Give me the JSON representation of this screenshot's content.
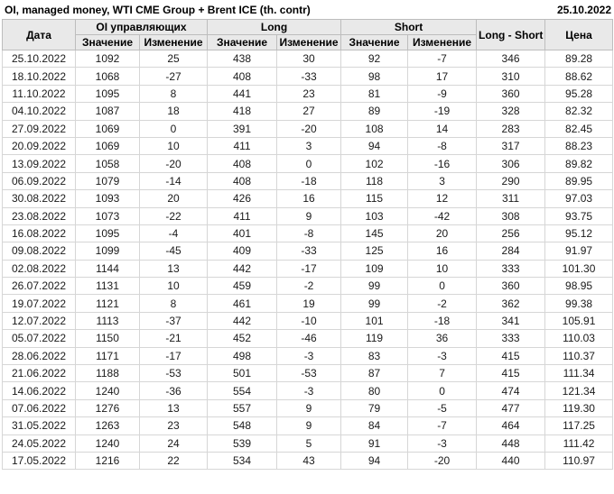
{
  "title": "OI, managed money, WTI CME Group + Brent ICE (th. contr)",
  "report_date": "25.10.2022",
  "colors": {
    "positive": "#1e9c1e",
    "negative": "#d13434",
    "header_bg": "#e9e9e9",
    "header_border": "#bdbdbd",
    "cell_border": "#d6d6d6",
    "text": "#1a1a1a"
  },
  "table": {
    "group_headers": {
      "date": "Дата",
      "oi": "OI управляющих",
      "long": "Long",
      "short": "Short",
      "long_short": "Long - Short",
      "price": "Цена"
    },
    "sub_headers": {
      "value": "Значение",
      "change": "Изменение"
    }
  },
  "chart_data": {
    "type": "table",
    "title": "OI, managed money, WTI CME Group + Brent ICE (th. contr)",
    "columns": [
      "Дата",
      "OI управляющих Значение",
      "OI управляющих Изменение",
      "Long Значение",
      "Long Изменение",
      "Short Значение",
      "Short Изменение",
      "Long - Short",
      "Цена"
    ],
    "rows": [
      {
        "date": "25.10.2022",
        "oi_value": "1092",
        "oi_change": "25",
        "oi_dir": "up",
        "long_value": "438",
        "long_change": "30",
        "long_dir": "up",
        "short_value": "92",
        "short_change": "-7",
        "short_dir": "down",
        "long_short": "346",
        "price": "89.28"
      },
      {
        "date": "18.10.2022",
        "oi_value": "1068",
        "oi_change": "-27",
        "oi_dir": "down",
        "long_value": "408",
        "long_change": "-33",
        "long_dir": "down",
        "short_value": "98",
        "short_change": "17",
        "short_dir": "up",
        "long_short": "310",
        "price": "88.62"
      },
      {
        "date": "11.10.2022",
        "oi_value": "1095",
        "oi_change": "8",
        "oi_dir": "up",
        "long_value": "441",
        "long_change": "23",
        "long_dir": "up",
        "short_value": "81",
        "short_change": "-9",
        "short_dir": "down",
        "long_short": "360",
        "price": "95.28"
      },
      {
        "date": "04.10.2022",
        "oi_value": "1087",
        "oi_change": "18",
        "oi_dir": "up",
        "long_value": "418",
        "long_change": "27",
        "long_dir": "up",
        "short_value": "89",
        "short_change": "-19",
        "short_dir": "down",
        "long_short": "328",
        "price": "82.32"
      },
      {
        "date": "27.09.2022",
        "oi_value": "1069",
        "oi_change": "0",
        "oi_dir": "up",
        "long_value": "391",
        "long_change": "-20",
        "long_dir": "down",
        "short_value": "108",
        "short_change": "14",
        "short_dir": "up",
        "long_short": "283",
        "price": "82.45"
      },
      {
        "date": "20.09.2022",
        "oi_value": "1069",
        "oi_change": "10",
        "oi_dir": "up",
        "long_value": "411",
        "long_change": "3",
        "long_dir": "up",
        "short_value": "94",
        "short_change": "-8",
        "short_dir": "down",
        "long_short": "317",
        "price": "88.23"
      },
      {
        "date": "13.09.2022",
        "oi_value": "1058",
        "oi_change": "-20",
        "oi_dir": "down",
        "long_value": "408",
        "long_change": "0",
        "long_dir": "down",
        "short_value": "102",
        "short_change": "-16",
        "short_dir": "down",
        "long_short": "306",
        "price": "89.82"
      },
      {
        "date": "06.09.2022",
        "oi_value": "1079",
        "oi_change": "-14",
        "oi_dir": "down",
        "long_value": "408",
        "long_change": "-18",
        "long_dir": "down",
        "short_value": "118",
        "short_change": "3",
        "short_dir": "up",
        "long_short": "290",
        "price": "89.95"
      },
      {
        "date": "30.08.2022",
        "oi_value": "1093",
        "oi_change": "20",
        "oi_dir": "up",
        "long_value": "426",
        "long_change": "16",
        "long_dir": "up",
        "short_value": "115",
        "short_change": "12",
        "short_dir": "up",
        "long_short": "311",
        "price": "97.03"
      },
      {
        "date": "23.08.2022",
        "oi_value": "1073",
        "oi_change": "-22",
        "oi_dir": "down",
        "long_value": "411",
        "long_change": "9",
        "long_dir": "up",
        "short_value": "103",
        "short_change": "-42",
        "short_dir": "down",
        "long_short": "308",
        "price": "93.75"
      },
      {
        "date": "16.08.2022",
        "oi_value": "1095",
        "oi_change": "-4",
        "oi_dir": "down",
        "long_value": "401",
        "long_change": "-8",
        "long_dir": "down",
        "short_value": "145",
        "short_change": "20",
        "short_dir": "up",
        "long_short": "256",
        "price": "95.12"
      },
      {
        "date": "09.08.2022",
        "oi_value": "1099",
        "oi_change": "-45",
        "oi_dir": "down",
        "long_value": "409",
        "long_change": "-33",
        "long_dir": "down",
        "short_value": "125",
        "short_change": "16",
        "short_dir": "up",
        "long_short": "284",
        "price": "91.97"
      },
      {
        "date": "02.08.2022",
        "oi_value": "1144",
        "oi_change": "13",
        "oi_dir": "up",
        "long_value": "442",
        "long_change": "-17",
        "long_dir": "down",
        "short_value": "109",
        "short_change": "10",
        "short_dir": "up",
        "long_short": "333",
        "price": "101.30"
      },
      {
        "date": "26.07.2022",
        "oi_value": "1131",
        "oi_change": "10",
        "oi_dir": "up",
        "long_value": "459",
        "long_change": "-2",
        "long_dir": "down",
        "short_value": "99",
        "short_change": "0",
        "short_dir": "up",
        "long_short": "360",
        "price": "98.95"
      },
      {
        "date": "19.07.2022",
        "oi_value": "1121",
        "oi_change": "8",
        "oi_dir": "up",
        "long_value": "461",
        "long_change": "19",
        "long_dir": "up",
        "short_value": "99",
        "short_change": "-2",
        "short_dir": "down",
        "long_short": "362",
        "price": "99.38"
      },
      {
        "date": "12.07.2022",
        "oi_value": "1113",
        "oi_change": "-37",
        "oi_dir": "down",
        "long_value": "442",
        "long_change": "-10",
        "long_dir": "down",
        "short_value": "101",
        "short_change": "-18",
        "short_dir": "down",
        "long_short": "341",
        "price": "105.91"
      },
      {
        "date": "05.07.2022",
        "oi_value": "1150",
        "oi_change": "-21",
        "oi_dir": "down",
        "long_value": "452",
        "long_change": "-46",
        "long_dir": "down",
        "short_value": "119",
        "short_change": "36",
        "short_dir": "up",
        "long_short": "333",
        "price": "110.03"
      },
      {
        "date": "28.06.2022",
        "oi_value": "1171",
        "oi_change": "-17",
        "oi_dir": "down",
        "long_value": "498",
        "long_change": "-3",
        "long_dir": "down",
        "short_value": "83",
        "short_change": "-3",
        "short_dir": "down",
        "long_short": "415",
        "price": "110.37"
      },
      {
        "date": "21.06.2022",
        "oi_value": "1188",
        "oi_change": "-53",
        "oi_dir": "down",
        "long_value": "501",
        "long_change": "-53",
        "long_dir": "down",
        "short_value": "87",
        "short_change": "7",
        "short_dir": "up",
        "long_short": "415",
        "price": "111.34"
      },
      {
        "date": "14.06.2022",
        "oi_value": "1240",
        "oi_change": "-36",
        "oi_dir": "down",
        "long_value": "554",
        "long_change": "-3",
        "long_dir": "down",
        "short_value": "80",
        "short_change": "0",
        "short_dir": "up",
        "long_short": "474",
        "price": "121.34"
      },
      {
        "date": "07.06.2022",
        "oi_value": "1276",
        "oi_change": "13",
        "oi_dir": "up",
        "long_value": "557",
        "long_change": "9",
        "long_dir": "up",
        "short_value": "79",
        "short_change": "-5",
        "short_dir": "down",
        "long_short": "477",
        "price": "119.30"
      },
      {
        "date": "31.05.2022",
        "oi_value": "1263",
        "oi_change": "23",
        "oi_dir": "up",
        "long_value": "548",
        "long_change": "9",
        "long_dir": "up",
        "short_value": "84",
        "short_change": "-7",
        "short_dir": "down",
        "long_short": "464",
        "price": "117.25"
      },
      {
        "date": "24.05.2022",
        "oi_value": "1240",
        "oi_change": "24",
        "oi_dir": "up",
        "long_value": "539",
        "long_change": "5",
        "long_dir": "up",
        "short_value": "91",
        "short_change": "-3",
        "short_dir": "down",
        "long_short": "448",
        "price": "111.42"
      },
      {
        "date": "17.05.2022",
        "oi_value": "1216",
        "oi_change": "22",
        "oi_dir": "up",
        "long_value": "534",
        "long_change": "43",
        "long_dir": "up",
        "short_value": "94",
        "short_change": "-20",
        "short_dir": "down",
        "long_short": "440",
        "price": "110.97"
      }
    ]
  }
}
